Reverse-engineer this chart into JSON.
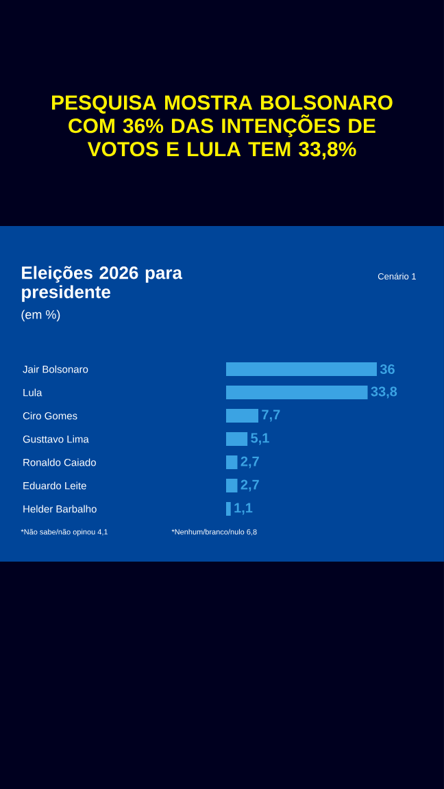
{
  "chart_data": {
    "type": "bar",
    "orientation": "horizontal",
    "title": "PESQUISA MOSTRA BOLSONARO COM 36% DAS INTENÇÕES DE VOTOS E LULA TEM 33,8%",
    "subtitle": "Eleições 2026 para presidente",
    "categories": [
      "Jair Bolsonaro",
      "Lula",
      "Ciro Gomes",
      "Gusttavo Lima",
      "Ronaldo Caiado",
      "Eduardo Leite",
      "Helder Barbalho"
    ],
    "values": [
      36,
      33.8,
      7.7,
      5.1,
      2.7,
      2.7,
      1.1
    ],
    "value_labels": [
      "36",
      "33,8",
      "7,7",
      "5,1",
      "2,7",
      "2,7",
      "1,1"
    ],
    "color": "#3ba3e3",
    "annotations": [
      "(em %)",
      "Cenário 1",
      "*Não sabe/não opinou 4,1",
      "*Nenhum/branco/nulo 6,8"
    ]
  }
}
